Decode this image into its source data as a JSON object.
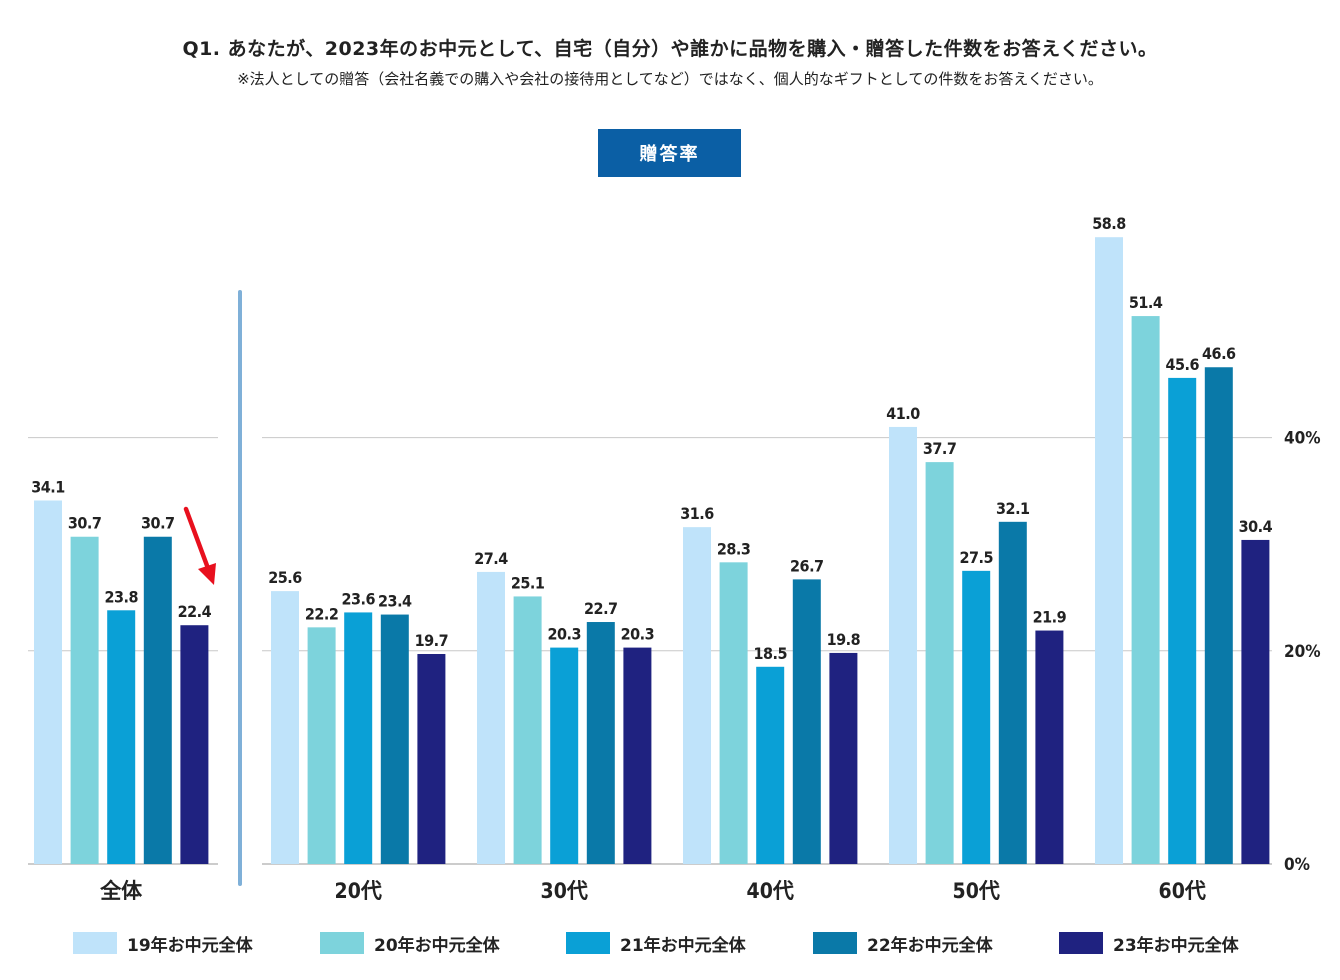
{
  "header": {
    "question": "Q1. あなたが、2023年のお中元として、自宅（自分）や誰かに品物を購入・贈答した件数をお答えください。",
    "note": "※法人としての贈答（会社名義での購入や会社の接待用としてなど）ではなく、個人的なギフトとしての件数をお答えください。",
    "badge": "贈答率"
  },
  "colors": {
    "series": [
      "#bfe3fa",
      "#7dd3dc",
      "#0aa0d6",
      "#0a79a8",
      "#1f2280"
    ],
    "grid": "#c8c8c8",
    "divider": "#7fb0d8",
    "arrow": "#e8101e",
    "badge": "#0b5fa5"
  },
  "chart_data": {
    "type": "bar",
    "categories": [
      "全体",
      "20代",
      "30代",
      "40代",
      "50代",
      "60代"
    ],
    "series": [
      {
        "name": "19年お中元全体",
        "values": [
          34.1,
          25.6,
          27.4,
          31.6,
          41.0,
          58.8
        ]
      },
      {
        "name": "20年お中元全体",
        "values": [
          30.7,
          22.2,
          25.1,
          28.3,
          37.7,
          51.4
        ]
      },
      {
        "name": "21年お中元全体",
        "values": [
          23.8,
          23.6,
          20.3,
          18.5,
          27.5,
          45.6
        ]
      },
      {
        "name": "22年お中元全体",
        "values": [
          30.7,
          23.4,
          22.7,
          26.7,
          32.1,
          46.6
        ]
      },
      {
        "name": "23年お中元全体",
        "values": [
          22.4,
          19.7,
          20.3,
          19.8,
          21.9,
          30.4
        ]
      }
    ],
    "y_ticks": [
      "0%",
      "20%",
      "40%"
    ],
    "y_tick_values": [
      0,
      20,
      40
    ],
    "ylim": [
      0,
      60
    ],
    "grid": true,
    "legend": "bottom",
    "annotation": "arrow pointing down at 全体 23年お中元全体 bar"
  }
}
